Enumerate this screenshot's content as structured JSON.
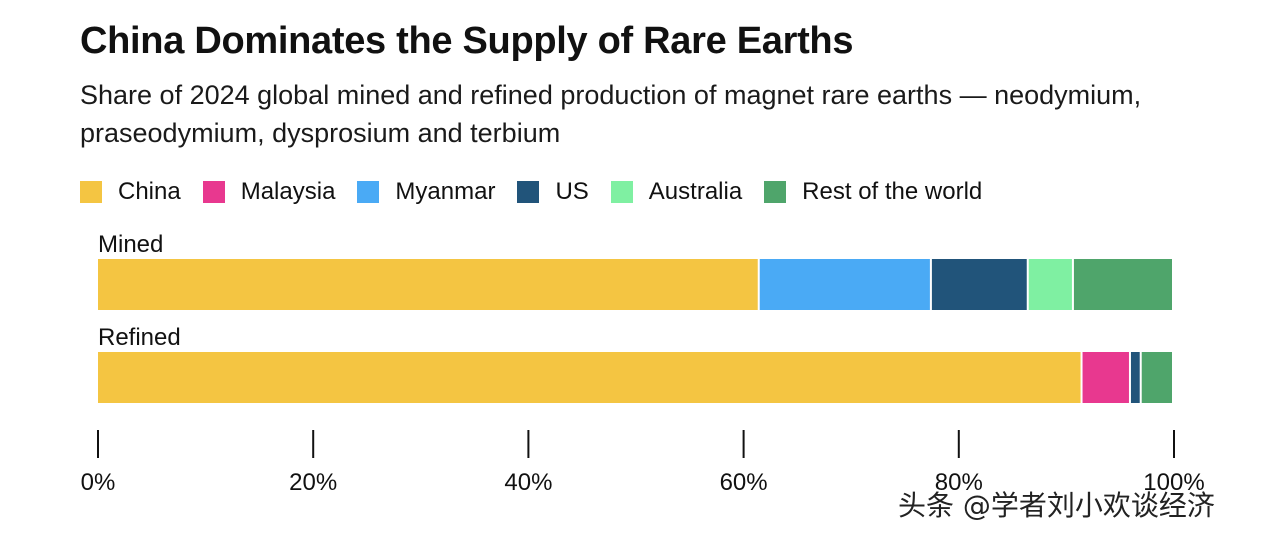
{
  "chart_data": {
    "type": "bar",
    "orientation": "horizontal",
    "stacked": true,
    "title": "China Dominates the Supply of Rare Earths",
    "subtitle": "Share of 2024 global mined and refined production of magnet rare earths — neodymium, praseodymium, dysprosium and terbium",
    "categories": [
      "Mined",
      "Refined"
    ],
    "series": [
      {
        "name": "China",
        "color": "#f4c542",
        "values": [
          61.5,
          91.5
        ]
      },
      {
        "name": "Malaysia",
        "color": "#e8388f",
        "values": [
          0,
          4.5
        ]
      },
      {
        "name": "Myanmar",
        "color": "#4aaaf5",
        "values": [
          16,
          0
        ]
      },
      {
        "name": "US",
        "color": "#21547a",
        "values": [
          9,
          1
        ]
      },
      {
        "name": "Australia",
        "color": "#7ff0a2",
        "values": [
          4.2,
          0
        ]
      },
      {
        "name": "Rest of the world",
        "color": "#4fa56b",
        "values": [
          9.3,
          3
        ]
      }
    ],
    "xlim": [
      0,
      100
    ],
    "xticks": [
      "0%",
      "20%",
      "40%",
      "60%",
      "80%",
      "100%"
    ],
    "legend": "top",
    "grid": false
  },
  "watermark": "头条 @学者刘小欢谈经济"
}
